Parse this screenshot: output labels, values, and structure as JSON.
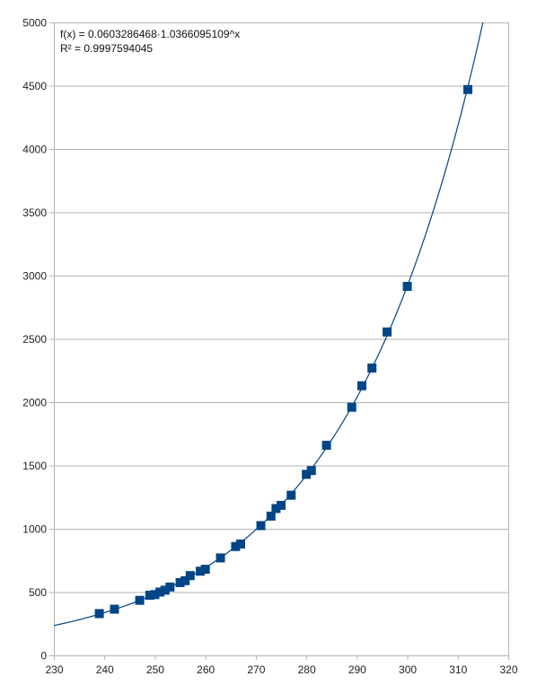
{
  "chart_data": {
    "type": "scatter",
    "xlim": [
      230,
      320
    ],
    "ylim": [
      0,
      5000
    ],
    "x_ticks": [
      230,
      240,
      250,
      260,
      270,
      280,
      290,
      300,
      310,
      320
    ],
    "y_ticks": [
      0,
      500,
      1000,
      1500,
      2000,
      2500,
      3000,
      3500,
      4000,
      4500,
      5000
    ],
    "grid": "horizontal",
    "legend": "none",
    "marker": "square",
    "colors": {
      "marker": "#004586",
      "trendline": "#004586",
      "grid": "#b3b3b3",
      "axis": "#b3b3b3"
    },
    "series": [
      {
        "points": [
          [
            239,
            330
          ],
          [
            242,
            365
          ],
          [
            247,
            435
          ],
          [
            249,
            475
          ],
          [
            250,
            480
          ],
          [
            251,
            500
          ],
          [
            252,
            515
          ],
          [
            253,
            540
          ],
          [
            255,
            575
          ],
          [
            256,
            590
          ],
          [
            257,
            630
          ],
          [
            259,
            665
          ],
          [
            260,
            680
          ],
          [
            263,
            770
          ],
          [
            266,
            860
          ],
          [
            267,
            880
          ],
          [
            271,
            1025
          ],
          [
            273,
            1100
          ],
          [
            274,
            1160
          ],
          [
            275,
            1185
          ],
          [
            277,
            1265
          ],
          [
            280,
            1430
          ],
          [
            281,
            1460
          ],
          [
            284,
            1660
          ],
          [
            289,
            1960
          ],
          [
            291,
            2130
          ],
          [
            293,
            2270
          ],
          [
            296,
            2555
          ],
          [
            300,
            2915
          ],
          [
            312,
            4470
          ]
        ]
      }
    ],
    "trendline": {
      "type": "exponential",
      "a": 0.0603286468,
      "b": 1.0366095109,
      "equation": "f(x) = 0.0603286468·1.0366095109^x",
      "r_squared": "R² = 0.9997594045"
    }
  }
}
